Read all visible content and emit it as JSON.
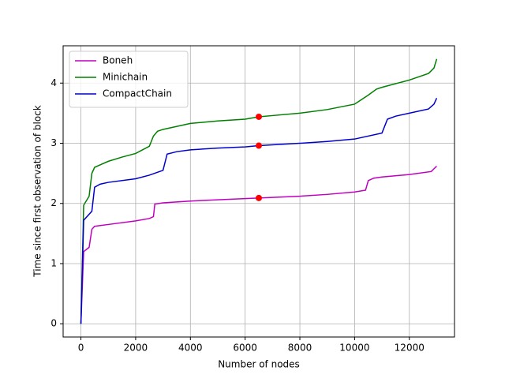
{
  "chart_data": {
    "type": "line",
    "xlabel": "Number of nodes",
    "ylabel": "Time since first observation of block",
    "xlim": [
      -650,
      13650
    ],
    "ylim": [
      -0.22,
      4.62
    ],
    "xticks": [
      0,
      2000,
      4000,
      6000,
      8000,
      10000,
      12000
    ],
    "yticks": [
      0,
      1,
      2,
      3,
      4
    ],
    "grid": true,
    "legend": "upper left",
    "series": [
      {
        "name": "Boneh",
        "color": "#bf00bf",
        "x": [
          0,
          100,
          300,
          400,
          500,
          1000,
          2000,
          2500,
          2650,
          2700,
          3000,
          4000,
          5000,
          6000,
          6500,
          8000,
          9000,
          10000,
          10400,
          10500,
          10700,
          11000,
          12000,
          12800,
          13000
        ],
        "values": [
          0,
          1.2,
          1.27,
          1.57,
          1.62,
          1.65,
          1.71,
          1.75,
          1.78,
          1.99,
          2.01,
          2.04,
          2.06,
          2.08,
          2.09,
          2.12,
          2.15,
          2.19,
          2.22,
          2.38,
          2.42,
          2.44,
          2.48,
          2.53,
          2.62
        ]
      },
      {
        "name": "Minichain",
        "color": "#008000",
        "x": [
          0,
          100,
          300,
          400,
          500,
          700,
          1000,
          1500,
          2000,
          2500,
          2650,
          2800,
          3000,
          4000,
          5000,
          6000,
          6500,
          7000,
          8000,
          9000,
          10000,
          10500,
          10800,
          11000,
          12000,
          12700,
          12900,
          13000
        ],
        "values": [
          0,
          1.97,
          2.12,
          2.5,
          2.6,
          2.64,
          2.7,
          2.77,
          2.83,
          2.95,
          3.12,
          3.2,
          3.23,
          3.33,
          3.37,
          3.4,
          3.44,
          3.46,
          3.5,
          3.56,
          3.65,
          3.8,
          3.9,
          3.93,
          4.05,
          4.16,
          4.25,
          4.4
        ]
      },
      {
        "name": "CompactChain",
        "color": "#0000cc",
        "x": [
          0,
          100,
          400,
          500,
          700,
          1000,
          2000,
          2500,
          3000,
          3150,
          3500,
          4000,
          5000,
          6000,
          6500,
          8000,
          9000,
          10000,
          11000,
          11200,
          11500,
          12000,
          12700,
          12900,
          13000
        ],
        "values": [
          0,
          1.72,
          1.87,
          2.27,
          2.32,
          2.35,
          2.41,
          2.47,
          2.55,
          2.82,
          2.86,
          2.89,
          2.92,
          2.94,
          2.96,
          3.0,
          3.03,
          3.07,
          3.17,
          3.4,
          3.45,
          3.5,
          3.57,
          3.65,
          3.75
        ]
      }
    ],
    "markers": {
      "color": "#ff0000",
      "x": [
        6500,
        6500,
        6500
      ],
      "y": [
        2.09,
        3.44,
        2.96
      ]
    }
  }
}
